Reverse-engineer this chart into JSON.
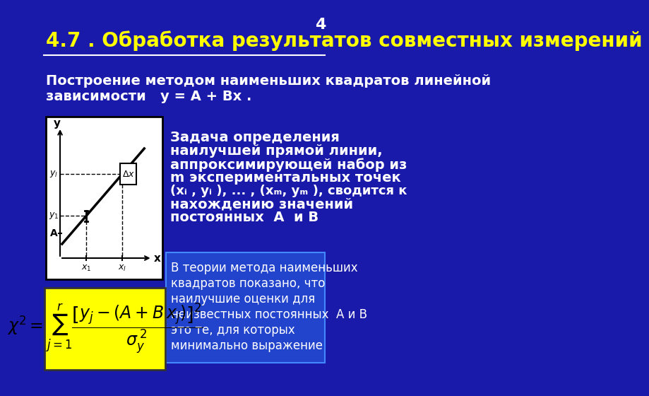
{
  "bg_color": "#1a1aaa",
  "title": "4.7 . Обработка результатов совместных измерений",
  "title_color": "#ffff00",
  "title_fontsize": 20,
  "subtitle": "Построение методом наименьших квадратов линейной\nзависимости   y = A + Bx .",
  "subtitle_color": "#ffffff",
  "subtitle_fontsize": 14,
  "page_number": "4",
  "right_text1": "Задача определения\nнаилучшей прямой линии,\nаппроксимирующей набор из\nm экспериментальных точек\n(x",
  "right_text2": "В теории метода наименьших\nквадратов показано, что\nнаилучшие оценки для\nнеизвестных постоянных  А и B\nэто те, для которых\nминимально выражение",
  "formula_bg": "#ffff00",
  "formula_color": "#000000"
}
